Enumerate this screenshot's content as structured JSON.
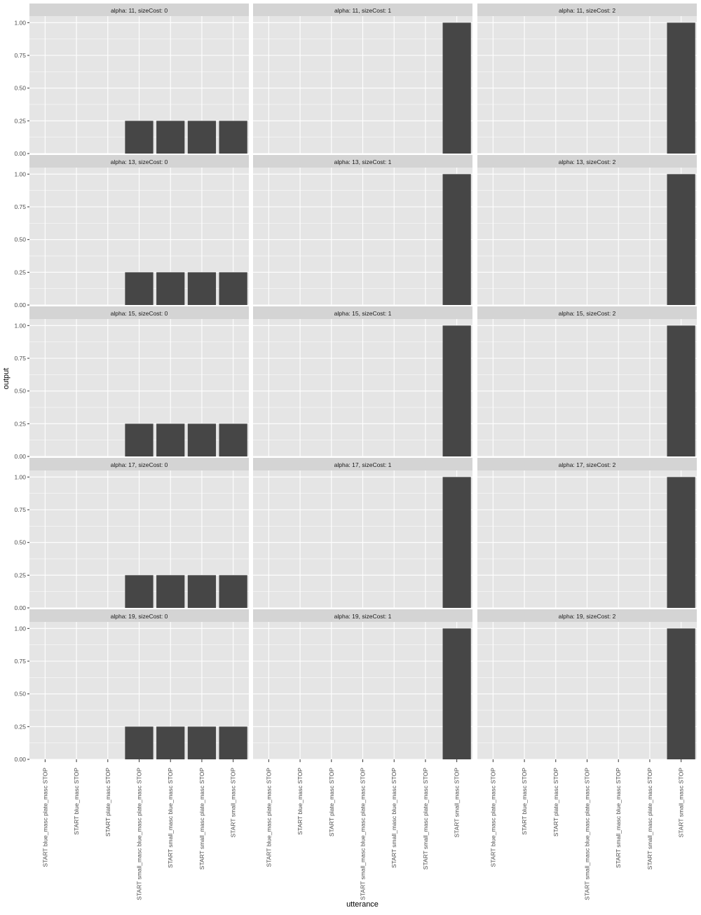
{
  "chart_data": {
    "type": "bar",
    "xlabel": "utterance",
    "ylabel": "output",
    "ylim": [
      0,
      1.05
    ],
    "y_ticks": [
      "0.00",
      "0.25",
      "0.50",
      "0.75",
      "1.00"
    ],
    "grid": true,
    "categories": [
      "START blue_masc plate_masc STOP",
      "START blue_masc STOP",
      "START plate_masc STOP",
      "START small_masc blue_masc plate_masc STOP",
      "START small_masc blue_masc STOP",
      "START small_masc plate_masc STOP",
      "START small_masc STOP"
    ],
    "facet_rows": [
      "11",
      "13",
      "15",
      "17",
      "19"
    ],
    "facet_cols": [
      "0",
      "1",
      "2"
    ],
    "panels": [
      {
        "title": "alpha: 11, sizeCost: 0",
        "values": [
          0,
          0,
          0,
          0.25,
          0.25,
          0.25,
          0.25
        ]
      },
      {
        "title": "alpha: 11, sizeCost: 1",
        "values": [
          0,
          0,
          0,
          0,
          0,
          0,
          1.0
        ]
      },
      {
        "title": "alpha: 11, sizeCost: 2",
        "values": [
          0,
          0,
          0,
          0,
          0,
          0,
          1.0
        ]
      },
      {
        "title": "alpha: 13, sizeCost: 0",
        "values": [
          0,
          0,
          0,
          0.25,
          0.25,
          0.25,
          0.25
        ]
      },
      {
        "title": "alpha: 13, sizeCost: 1",
        "values": [
          0,
          0,
          0,
          0,
          0,
          0,
          1.0
        ]
      },
      {
        "title": "alpha: 13, sizeCost: 2",
        "values": [
          0,
          0,
          0,
          0,
          0,
          0,
          1.0
        ]
      },
      {
        "title": "alpha: 15, sizeCost: 0",
        "values": [
          0,
          0,
          0,
          0.25,
          0.25,
          0.25,
          0.25
        ]
      },
      {
        "title": "alpha: 15, sizeCost: 1",
        "values": [
          0,
          0,
          0,
          0,
          0,
          0,
          1.0
        ]
      },
      {
        "title": "alpha: 15, sizeCost: 2",
        "values": [
          0,
          0,
          0,
          0,
          0,
          0,
          1.0
        ]
      },
      {
        "title": "alpha: 17, sizeCost: 0",
        "values": [
          0,
          0,
          0,
          0.25,
          0.25,
          0.25,
          0.25
        ]
      },
      {
        "title": "alpha: 17, sizeCost: 1",
        "values": [
          0,
          0,
          0,
          0,
          0,
          0,
          1.0
        ]
      },
      {
        "title": "alpha: 17, sizeCost: 2",
        "values": [
          0,
          0,
          0,
          0,
          0,
          0,
          1.0
        ]
      },
      {
        "title": "alpha: 19, sizeCost: 0",
        "values": [
          0,
          0,
          0,
          0.25,
          0.25,
          0.25,
          0.25
        ]
      },
      {
        "title": "alpha: 19, sizeCost: 1",
        "values": [
          0,
          0,
          0,
          0,
          0,
          0,
          1.0
        ]
      },
      {
        "title": "alpha: 19, sizeCost: 2",
        "values": [
          0,
          0,
          0,
          0,
          0,
          0,
          1.0
        ]
      }
    ],
    "colors": {
      "bar": "#464646",
      "panel_bg": "#e5e5e5",
      "strip_bg": "#d4d4d4",
      "grid": "#ffffff",
      "text": "#4d4d4d",
      "title_text": "#1a1a1a"
    }
  }
}
